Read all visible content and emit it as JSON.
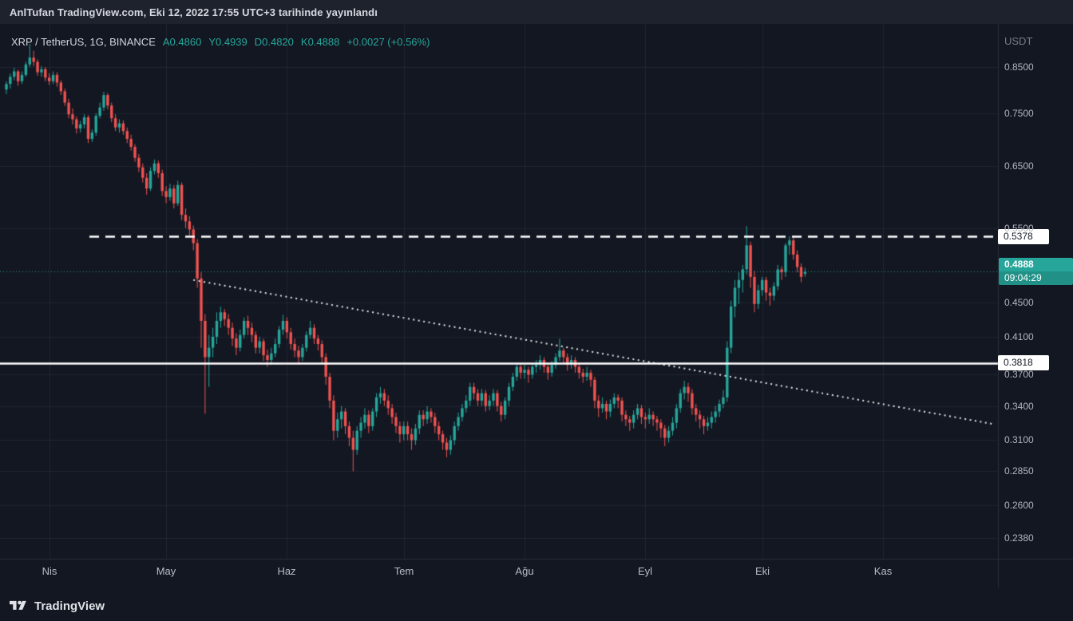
{
  "publish_bar": {
    "text": "AnlTufan TradingView.com, Eki 12, 2022 17:55 UTC+3 tarihinde yayınlandı"
  },
  "legend": {
    "symbol": "XRP / TetherUS, 1G, BINANCE",
    "ohlc": [
      {
        "label": "A",
        "value": "0.4860"
      },
      {
        "label": "Y",
        "value": "0.4939"
      },
      {
        "label": "D",
        "value": "0.4820"
      },
      {
        "label": "K",
        "value": "0.4888"
      }
    ],
    "change": "+0.0027 (+0.56%)"
  },
  "price_axis": {
    "unit": "USDT",
    "labels": [
      {
        "text": "0.8500",
        "price": 0.85
      },
      {
        "text": "0.7500",
        "price": 0.75
      },
      {
        "text": "0.6500",
        "price": 0.65
      },
      {
        "text": "0.5500",
        "price": 0.55
      },
      {
        "text": "0.4500",
        "price": 0.45
      },
      {
        "text": "0.4100",
        "price": 0.41
      },
      {
        "text": "0.3700",
        "price": 0.37
      },
      {
        "text": "0.3400",
        "price": 0.34
      },
      {
        "text": "0.3100",
        "price": 0.31
      },
      {
        "text": "0.2850",
        "price": 0.285
      },
      {
        "text": "0.2600",
        "price": 0.26
      },
      {
        "text": "0.2380",
        "price": 0.238
      }
    ]
  },
  "time_axis": {
    "months": [
      {
        "label": "Nis",
        "index": 11
      },
      {
        "label": "May",
        "index": 41
      },
      {
        "label": "Haz",
        "index": 72
      },
      {
        "label": "Tem",
        "index": 102
      },
      {
        "label": "Ağu",
        "index": 133
      },
      {
        "label": "Eyl",
        "index": 164
      },
      {
        "label": "Eki",
        "index": 194
      },
      {
        "label": "Kas",
        "index": 225
      }
    ]
  },
  "markers": {
    "resistance": {
      "label": "0.5378",
      "price": 0.5378,
      "style": "dashed"
    },
    "support": {
      "label": "0.3818",
      "price": 0.3818,
      "style": "solid"
    },
    "last": {
      "label": "0.4888",
      "countdown": "09:04:29",
      "price": 0.4888
    }
  },
  "footer": {
    "brand": "TradingView"
  },
  "colors": {
    "up": "#26a69a",
    "down": "#ef5350",
    "background": "#131722",
    "axis_text": "#b2b5be",
    "line": "#ffffff"
  },
  "chart_data": {
    "type": "candlestick",
    "symbol": "XRP / TetherUS",
    "interval": "1G",
    "exchange": "BINANCE",
    "quote_unit": "USDT",
    "scale": "log",
    "grid": true,
    "legend_position": "top-left",
    "visible_price_range": [
      0.225,
      0.955
    ],
    "last_bar": {
      "open": 0.486,
      "high": 0.4939,
      "low": 0.482,
      "close": 0.4888,
      "change": 0.0027,
      "change_pct": 0.56
    },
    "levels": [
      {
        "price": 0.5378,
        "style": "dashed",
        "color": "#ffffff"
      },
      {
        "price": 0.3818,
        "style": "solid",
        "color": "#ffffff"
      },
      {
        "price": 0.4888,
        "style": "dotted",
        "color": "#26a69a",
        "role": "last-price"
      }
    ],
    "trendline": {
      "from_index": 48,
      "from_price": 0.478,
      "to_index": 253,
      "to_price": 0.324,
      "style": "dotted",
      "color": "#ffffff"
    },
    "candles": [
      [
        0.8,
        0.818,
        0.79,
        0.812
      ],
      [
        0.812,
        0.835,
        0.802,
        0.828
      ],
      [
        0.828,
        0.848,
        0.82,
        0.84
      ],
      [
        0.84,
        0.844,
        0.808,
        0.818
      ],
      [
        0.818,
        0.84,
        0.812,
        0.832
      ],
      [
        0.832,
        0.862,
        0.828,
        0.856
      ],
      [
        0.856,
        0.905,
        0.85,
        0.872
      ],
      [
        0.872,
        0.888,
        0.852,
        0.862
      ],
      [
        0.862,
        0.868,
        0.83,
        0.838
      ],
      [
        0.838,
        0.852,
        0.828,
        0.845
      ],
      [
        0.845,
        0.85,
        0.818,
        0.826
      ],
      [
        0.826,
        0.836,
        0.81,
        0.818
      ],
      [
        0.818,
        0.84,
        0.812,
        0.832
      ],
      [
        0.832,
        0.838,
        0.806,
        0.815
      ],
      [
        0.815,
        0.82,
        0.788,
        0.796
      ],
      [
        0.796,
        0.802,
        0.765,
        0.772
      ],
      [
        0.772,
        0.78,
        0.74,
        0.748
      ],
      [
        0.748,
        0.76,
        0.728,
        0.738
      ],
      [
        0.738,
        0.744,
        0.71,
        0.72
      ],
      [
        0.72,
        0.735,
        0.712,
        0.728
      ],
      [
        0.728,
        0.748,
        0.72,
        0.742
      ],
      [
        0.742,
        0.746,
        0.692,
        0.7
      ],
      [
        0.7,
        0.718,
        0.694,
        0.712
      ],
      [
        0.712,
        0.75,
        0.706,
        0.745
      ],
      [
        0.745,
        0.772,
        0.74,
        0.762
      ],
      [
        0.762,
        0.795,
        0.755,
        0.788
      ],
      [
        0.788,
        0.792,
        0.758,
        0.766
      ],
      [
        0.766,
        0.772,
        0.732,
        0.74
      ],
      [
        0.74,
        0.748,
        0.715,
        0.722
      ],
      [
        0.722,
        0.738,
        0.712,
        0.73
      ],
      [
        0.73,
        0.736,
        0.708,
        0.715
      ],
      [
        0.715,
        0.722,
        0.692,
        0.7
      ],
      [
        0.7,
        0.708,
        0.678,
        0.685
      ],
      [
        0.685,
        0.69,
        0.658,
        0.665
      ],
      [
        0.665,
        0.672,
        0.64,
        0.648
      ],
      [
        0.648,
        0.655,
        0.622,
        0.63
      ],
      [
        0.63,
        0.638,
        0.602,
        0.612
      ],
      [
        0.612,
        0.648,
        0.608,
        0.642
      ],
      [
        0.642,
        0.662,
        0.636,
        0.655
      ],
      [
        0.655,
        0.66,
        0.63,
        0.638
      ],
      [
        0.638,
        0.644,
        0.6,
        0.608
      ],
      [
        0.608,
        0.616,
        0.588,
        0.598
      ],
      [
        0.598,
        0.62,
        0.592,
        0.612
      ],
      [
        0.612,
        0.618,
        0.58,
        0.588
      ],
      [
        0.588,
        0.625,
        0.584,
        0.618
      ],
      [
        0.618,
        0.622,
        0.562,
        0.57
      ],
      [
        0.57,
        0.58,
        0.55,
        0.56
      ],
      [
        0.56,
        0.568,
        0.538,
        0.548
      ],
      [
        0.548,
        0.554,
        0.518,
        0.528
      ],
      [
        0.528,
        0.534,
        0.468,
        0.48
      ],
      [
        0.48,
        0.488,
        0.398,
        0.428
      ],
      [
        0.428,
        0.436,
        0.333,
        0.388
      ],
      [
        0.388,
        0.412,
        0.358,
        0.398
      ],
      [
        0.398,
        0.42,
        0.388,
        0.41
      ],
      [
        0.41,
        0.438,
        0.402,
        0.428
      ],
      [
        0.428,
        0.445,
        0.42,
        0.438
      ],
      [
        0.438,
        0.442,
        0.422,
        0.43
      ],
      [
        0.43,
        0.436,
        0.412,
        0.42
      ],
      [
        0.42,
        0.426,
        0.4,
        0.408
      ],
      [
        0.408,
        0.414,
        0.39,
        0.398
      ],
      [
        0.398,
        0.418,
        0.394,
        0.412
      ],
      [
        0.412,
        0.432,
        0.408,
        0.428
      ],
      [
        0.428,
        0.434,
        0.412,
        0.42
      ],
      [
        0.42,
        0.426,
        0.404,
        0.412
      ],
      [
        0.412,
        0.416,
        0.392,
        0.398
      ],
      [
        0.398,
        0.41,
        0.392,
        0.405
      ],
      [
        0.405,
        0.408,
        0.384,
        0.39
      ],
      [
        0.39,
        0.396,
        0.378,
        0.385
      ],
      [
        0.385,
        0.398,
        0.38,
        0.392
      ],
      [
        0.392,
        0.408,
        0.388,
        0.402
      ],
      [
        0.402,
        0.422,
        0.398,
        0.418
      ],
      [
        0.418,
        0.435,
        0.412,
        0.428
      ],
      [
        0.428,
        0.432,
        0.408,
        0.415
      ],
      [
        0.415,
        0.42,
        0.396,
        0.402
      ],
      [
        0.402,
        0.408,
        0.388,
        0.395
      ],
      [
        0.395,
        0.4,
        0.38,
        0.388
      ],
      [
        0.388,
        0.402,
        0.384,
        0.398
      ],
      [
        0.398,
        0.416,
        0.394,
        0.412
      ],
      [
        0.412,
        0.428,
        0.408,
        0.42
      ],
      [
        0.42,
        0.424,
        0.402,
        0.408
      ],
      [
        0.408,
        0.412,
        0.395,
        0.402
      ],
      [
        0.402,
        0.406,
        0.382,
        0.388
      ],
      [
        0.388,
        0.392,
        0.36,
        0.368
      ],
      [
        0.368,
        0.372,
        0.338,
        0.345
      ],
      [
        0.345,
        0.35,
        0.31,
        0.318
      ],
      [
        0.318,
        0.334,
        0.312,
        0.328
      ],
      [
        0.328,
        0.34,
        0.32,
        0.335
      ],
      [
        0.335,
        0.338,
        0.315,
        0.322
      ],
      [
        0.322,
        0.326,
        0.305,
        0.312
      ],
      [
        0.312,
        0.318,
        0.285,
        0.302
      ],
      [
        0.302,
        0.322,
        0.298,
        0.318
      ],
      [
        0.318,
        0.33,
        0.312,
        0.325
      ],
      [
        0.325,
        0.338,
        0.32,
        0.332
      ],
      [
        0.332,
        0.336,
        0.316,
        0.322
      ],
      [
        0.322,
        0.338,
        0.318,
        0.335
      ],
      [
        0.335,
        0.352,
        0.33,
        0.348
      ],
      [
        0.348,
        0.358,
        0.342,
        0.352
      ],
      [
        0.352,
        0.356,
        0.34,
        0.345
      ],
      [
        0.345,
        0.35,
        0.332,
        0.338
      ],
      [
        0.338,
        0.342,
        0.324,
        0.33
      ],
      [
        0.33,
        0.334,
        0.316,
        0.322
      ],
      [
        0.322,
        0.326,
        0.308,
        0.315
      ],
      [
        0.315,
        0.326,
        0.31,
        0.322
      ],
      [
        0.322,
        0.326,
        0.31,
        0.315
      ],
      [
        0.315,
        0.32,
        0.302,
        0.31
      ],
      [
        0.31,
        0.324,
        0.306,
        0.32
      ],
      [
        0.32,
        0.336,
        0.315,
        0.332
      ],
      [
        0.332,
        0.336,
        0.322,
        0.328
      ],
      [
        0.328,
        0.34,
        0.324,
        0.335
      ],
      [
        0.335,
        0.338,
        0.325,
        0.33
      ],
      [
        0.33,
        0.334,
        0.316,
        0.322
      ],
      [
        0.322,
        0.326,
        0.31,
        0.315
      ],
      [
        0.315,
        0.318,
        0.302,
        0.308
      ],
      [
        0.308,
        0.312,
        0.296,
        0.302
      ],
      [
        0.302,
        0.314,
        0.298,
        0.31
      ],
      [
        0.31,
        0.326,
        0.306,
        0.322
      ],
      [
        0.322,
        0.334,
        0.318,
        0.33
      ],
      [
        0.33,
        0.342,
        0.326,
        0.338
      ],
      [
        0.338,
        0.35,
        0.334,
        0.345
      ],
      [
        0.345,
        0.362,
        0.34,
        0.358
      ],
      [
        0.358,
        0.362,
        0.346,
        0.352
      ],
      [
        0.352,
        0.356,
        0.34,
        0.345
      ],
      [
        0.345,
        0.356,
        0.34,
        0.352
      ],
      [
        0.352,
        0.355,
        0.335,
        0.34
      ],
      [
        0.34,
        0.35,
        0.336,
        0.345
      ],
      [
        0.345,
        0.356,
        0.34,
        0.352
      ],
      [
        0.352,
        0.355,
        0.335,
        0.34
      ],
      [
        0.34,
        0.344,
        0.326,
        0.332
      ],
      [
        0.332,
        0.348,
        0.328,
        0.345
      ],
      [
        0.345,
        0.362,
        0.34,
        0.358
      ],
      [
        0.358,
        0.372,
        0.354,
        0.368
      ],
      [
        0.368,
        0.382,
        0.364,
        0.378
      ],
      [
        0.378,
        0.382,
        0.366,
        0.372
      ],
      [
        0.372,
        0.38,
        0.366,
        0.375
      ],
      [
        0.375,
        0.378,
        0.362,
        0.37
      ],
      [
        0.37,
        0.382,
        0.366,
        0.378
      ],
      [
        0.378,
        0.385,
        0.372,
        0.38
      ],
      [
        0.38,
        0.39,
        0.375,
        0.385
      ],
      [
        0.385,
        0.388,
        0.372,
        0.378
      ],
      [
        0.378,
        0.381,
        0.365,
        0.372
      ],
      [
        0.372,
        0.384,
        0.368,
        0.38
      ],
      [
        0.38,
        0.392,
        0.376,
        0.388
      ],
      [
        0.388,
        0.408,
        0.384,
        0.395
      ],
      [
        0.395,
        0.398,
        0.382,
        0.388
      ],
      [
        0.388,
        0.392,
        0.374,
        0.38
      ],
      [
        0.38,
        0.39,
        0.376,
        0.385
      ],
      [
        0.385,
        0.388,
        0.372,
        0.378
      ],
      [
        0.378,
        0.382,
        0.366,
        0.372
      ],
      [
        0.372,
        0.376,
        0.362,
        0.368
      ],
      [
        0.368,
        0.378,
        0.364,
        0.372
      ],
      [
        0.372,
        0.375,
        0.358,
        0.365
      ],
      [
        0.365,
        0.368,
        0.338,
        0.345
      ],
      [
        0.345,
        0.35,
        0.33,
        0.338
      ],
      [
        0.338,
        0.348,
        0.334,
        0.342
      ],
      [
        0.342,
        0.345,
        0.328,
        0.335
      ],
      [
        0.335,
        0.346,
        0.33,
        0.342
      ],
      [
        0.342,
        0.352,
        0.338,
        0.348
      ],
      [
        0.348,
        0.351,
        0.338,
        0.345
      ],
      [
        0.345,
        0.348,
        0.326,
        0.332
      ],
      [
        0.332,
        0.336,
        0.322,
        0.328
      ],
      [
        0.328,
        0.331,
        0.318,
        0.325
      ],
      [
        0.325,
        0.336,
        0.32,
        0.332
      ],
      [
        0.332,
        0.342,
        0.328,
        0.338
      ],
      [
        0.338,
        0.341,
        0.324,
        0.33
      ],
      [
        0.33,
        0.334,
        0.32,
        0.328
      ],
      [
        0.328,
        0.338,
        0.324,
        0.332
      ],
      [
        0.332,
        0.335,
        0.322,
        0.328
      ],
      [
        0.328,
        0.331,
        0.318,
        0.325
      ],
      [
        0.325,
        0.328,
        0.312,
        0.32
      ],
      [
        0.32,
        0.323,
        0.305,
        0.312
      ],
      [
        0.312,
        0.322,
        0.308,
        0.318
      ],
      [
        0.318,
        0.33,
        0.314,
        0.325
      ],
      [
        0.325,
        0.342,
        0.32,
        0.338
      ],
      [
        0.338,
        0.356,
        0.334,
        0.352
      ],
      [
        0.352,
        0.364,
        0.346,
        0.358
      ],
      [
        0.358,
        0.362,
        0.344,
        0.352
      ],
      [
        0.352,
        0.356,
        0.332,
        0.338
      ],
      [
        0.338,
        0.342,
        0.326,
        0.332
      ],
      [
        0.332,
        0.336,
        0.32,
        0.328
      ],
      [
        0.328,
        0.331,
        0.315,
        0.322
      ],
      [
        0.322,
        0.33,
        0.318,
        0.325
      ],
      [
        0.325,
        0.335,
        0.32,
        0.33
      ],
      [
        0.33,
        0.34,
        0.325,
        0.335
      ],
      [
        0.335,
        0.346,
        0.33,
        0.342
      ],
      [
        0.342,
        0.355,
        0.338,
        0.348
      ],
      [
        0.348,
        0.405,
        0.344,
        0.398
      ],
      [
        0.398,
        0.452,
        0.392,
        0.445
      ],
      [
        0.445,
        0.478,
        0.432,
        0.468
      ],
      [
        0.468,
        0.488,
        0.448,
        0.478
      ],
      [
        0.478,
        0.498,
        0.462,
        0.492
      ],
      [
        0.492,
        0.553,
        0.485,
        0.525
      ],
      [
        0.525,
        0.53,
        0.468,
        0.482
      ],
      [
        0.482,
        0.49,
        0.438,
        0.448
      ],
      [
        0.448,
        0.472,
        0.442,
        0.465
      ],
      [
        0.465,
        0.482,
        0.458,
        0.478
      ],
      [
        0.478,
        0.482,
        0.452,
        0.462
      ],
      [
        0.462,
        0.468,
        0.446,
        0.458
      ],
      [
        0.458,
        0.475,
        0.452,
        0.47
      ],
      [
        0.47,
        0.498,
        0.465,
        0.492
      ],
      [
        0.492,
        0.496,
        0.478,
        0.488
      ],
      [
        0.488,
        0.528,
        0.482,
        0.525
      ],
      [
        0.525,
        0.538,
        0.512,
        0.532
      ],
      [
        0.532,
        0.536,
        0.505,
        0.512
      ],
      [
        0.512,
        0.518,
        0.488,
        0.495
      ],
      [
        0.495,
        0.5,
        0.475,
        0.482
      ],
      [
        0.486,
        0.4939,
        0.482,
        0.4888
      ]
    ]
  }
}
